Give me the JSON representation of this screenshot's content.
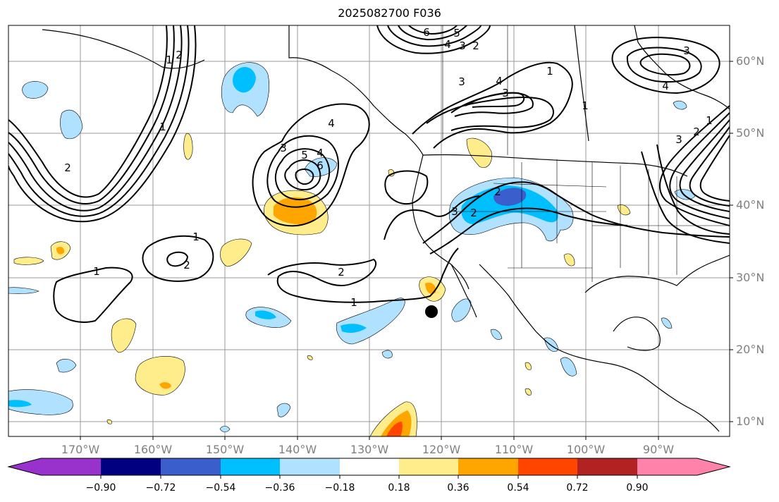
{
  "title": "2025082700 F036",
  "lat_labels": [
    "60°N",
    "50°N",
    "40°N",
    "30°N",
    "20°N",
    "10°N"
  ],
  "lon_labels": [
    "170°W",
    "160°W",
    "150°W",
    "140°W",
    "130°W",
    "120°W",
    "110°W",
    "100°W",
    "90°W"
  ],
  "contour_labels": [
    "6",
    "5",
    "4",
    "3",
    "2",
    "1",
    "1",
    "2",
    "3",
    "4",
    "3",
    "4",
    "3",
    "6",
    "5",
    "4",
    "3",
    "2",
    "1",
    "1",
    "2",
    "1",
    "2",
    "3",
    "2",
    "4",
    "3",
    "2",
    "1",
    "1",
    "1",
    "2"
  ],
  "colorbar": {
    "ticks": [
      "−0.90",
      "−0.72",
      "−0.54",
      "−0.36",
      "−0.18",
      "0.18",
      "0.36",
      "0.54",
      "0.72",
      "0.90"
    ],
    "colors": [
      "#9932cc",
      "#000080",
      "#3a5fcd",
      "#00bfff",
      "#b0e2ff",
      "#ffffff",
      "#ffec8b",
      "#ffa500",
      "#ff4500",
      "#b22222",
      "#ff82ab"
    ]
  },
  "marker": "point-marker"
}
